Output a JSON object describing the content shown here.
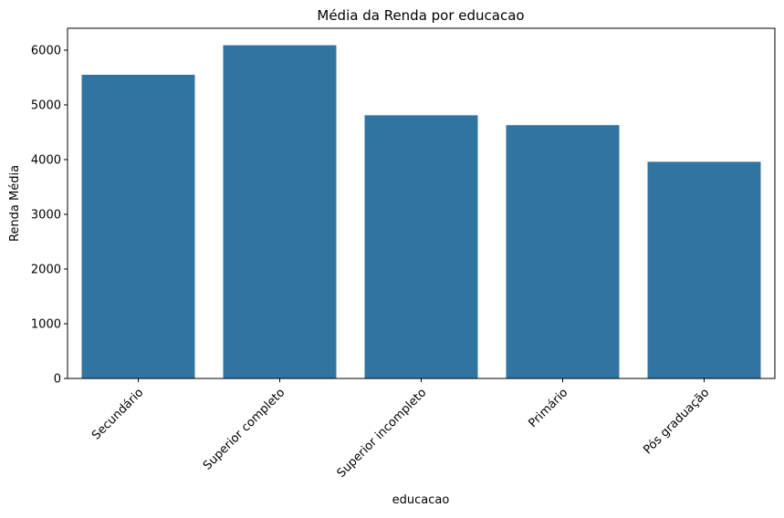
{
  "chart_data": {
    "type": "bar",
    "title": "Média da Renda por educacao",
    "xlabel": "educacao",
    "ylabel": "Renda Média",
    "categories": [
      "Secundário",
      "Superior completo",
      "Superior incompleto",
      "Primário",
      "Pós graduação"
    ],
    "values": [
      5550,
      6090,
      4810,
      4630,
      3960
    ],
    "ylim": [
      0,
      6400
    ],
    "yticks": [
      "0",
      "1000",
      "2000",
      "3000",
      "4000",
      "5000",
      "6000"
    ],
    "grid": false,
    "bar_color": "#3274a1"
  }
}
